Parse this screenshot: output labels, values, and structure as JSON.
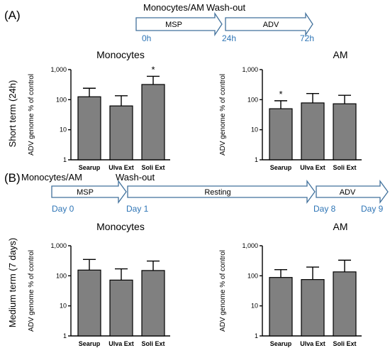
{
  "panel_a": {
    "label": "(A)",
    "timeline": {
      "top_labels": [
        "Monocytes/AM",
        "Wash-out"
      ],
      "arrows": [
        "MSP",
        "ADV"
      ],
      "times": [
        "0h",
        "24h",
        "72h"
      ]
    },
    "row_label": "Short term (24h)"
  },
  "panel_b": {
    "label": "(B)",
    "timeline": {
      "top_labels": [
        "Monocytes/AM",
        "Wash-out"
      ],
      "arrows": [
        "MSP",
        "Resting",
        "ADV"
      ],
      "times": [
        "Day 0",
        "Day 1",
        "Day 8",
        "Day 9"
      ]
    },
    "row_label": "Medium term (7 days)"
  },
  "colors": {
    "bar": "#808080",
    "timeline_text": "#2e75b6",
    "arrow_outline": "#41719c"
  },
  "chart_data": [
    {
      "type": "bar",
      "title": "Monocytes",
      "ylabel": "ADV genome % of control",
      "yscale": "log",
      "ylim": [
        1,
        1000
      ],
      "yticks": [
        "1",
        "10",
        "100",
        "1,000"
      ],
      "categories": [
        "Searup",
        "Ulva Ext",
        "Soli Ext"
      ],
      "values": [
        125,
        62,
        320
      ],
      "error": [
        240,
        135,
        600
      ],
      "annotations": [
        "",
        "",
        "*"
      ]
    },
    {
      "type": "bar",
      "title": "AM",
      "ylabel": "ADV genome % of control",
      "yscale": "log",
      "ylim": [
        1,
        1000
      ],
      "yticks": [
        "1",
        "10",
        "100",
        "1,000"
      ],
      "categories": [
        "Searup",
        "Ulva Ext",
        "Soli Ext"
      ],
      "values": [
        50,
        78,
        73
      ],
      "error": [
        92,
        160,
        140
      ],
      "annotations": [
        "*",
        "",
        ""
      ]
    },
    {
      "type": "bar",
      "title": "Monocytes",
      "ylabel": "ADV genome % of control",
      "yscale": "log",
      "ylim": [
        1,
        1000
      ],
      "yticks": [
        "1",
        "10",
        "100",
        "1,000"
      ],
      "categories": [
        "Searup",
        "Ulva Ext",
        "Soli Ext"
      ],
      "values": [
        155,
        72,
        150
      ],
      "error": [
        350,
        170,
        310
      ],
      "annotations": [
        "",
        "",
        ""
      ]
    },
    {
      "type": "bar",
      "title": "AM",
      "ylabel": "ADV genome % of control",
      "yscale": "log",
      "ylim": [
        1,
        1000
      ],
      "yticks": [
        "1",
        "10",
        "100",
        "1,000"
      ],
      "categories": [
        "Searup",
        "Ulva Ext",
        "Soli Ext"
      ],
      "values": [
        88,
        75,
        135
      ],
      "error": [
        160,
        195,
        330
      ],
      "annotations": [
        "",
        "",
        ""
      ]
    }
  ]
}
